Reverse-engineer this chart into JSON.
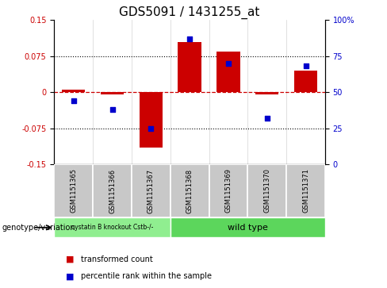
{
  "title": "GDS5091 / 1431255_at",
  "categories": [
    "GSM1151365",
    "GSM1151366",
    "GSM1151367",
    "GSM1151368",
    "GSM1151369",
    "GSM1151370",
    "GSM1151371"
  ],
  "bar_values": [
    0.005,
    -0.005,
    -0.115,
    0.105,
    0.085,
    -0.005,
    0.045
  ],
  "dot_values": [
    44,
    38,
    25,
    87,
    70,
    32,
    68
  ],
  "bar_color": "#cc0000",
  "dot_color": "#0000cc",
  "dashed_line_color": "#cc0000",
  "ylim_left": [
    -0.15,
    0.15
  ],
  "ylim_right": [
    0,
    100
  ],
  "yticks_left": [
    -0.15,
    -0.075,
    0,
    0.075,
    0.15
  ],
  "yticks_right": [
    0,
    25,
    50,
    75,
    100
  ],
  "ytick_labels_left": [
    "-0.15",
    "-0.075",
    "0",
    "0.075",
    "0.15"
  ],
  "ytick_labels_right": [
    "0",
    "25",
    "50",
    "75",
    "100%"
  ],
  "group1_label": "cystatin B knockout Cstb-/-",
  "group2_label": "wild type",
  "group1_indices": [
    0,
    1,
    2
  ],
  "group2_indices": [
    3,
    4,
    5,
    6
  ],
  "group1_color": "#90ee90",
  "group2_color": "#5cd65c",
  "sample_bg_color": "#c8c8c8",
  "legend_bar_label": "transformed count",
  "legend_dot_label": "percentile rank within the sample",
  "genotype_label": "genotype/variation",
  "title_fontsize": 11,
  "tick_fontsize": 7,
  "bar_width": 0.6
}
